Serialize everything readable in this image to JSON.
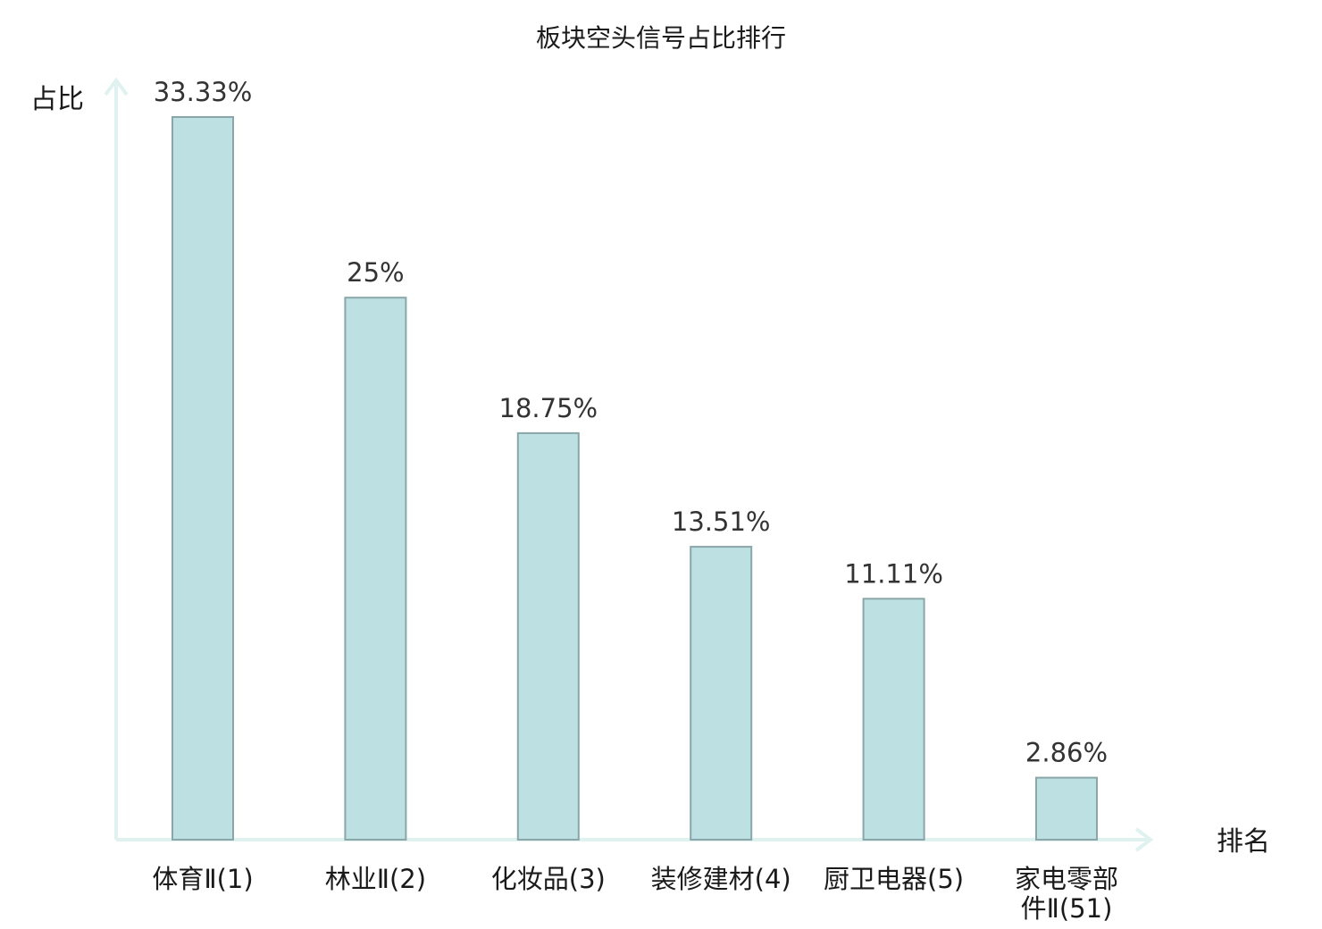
{
  "chart_data": {
    "type": "bar",
    "title": "板块空头信号占比排行",
    "ylabel": "占比",
    "xlabel": "排名",
    "ylim": [
      0,
      36
    ],
    "grid": false,
    "legend": "none",
    "categories": [
      [
        "体育Ⅱ(1)"
      ],
      [
        "林业Ⅱ(2)"
      ],
      [
        "化妆品(3)"
      ],
      [
        "装修建材(4)"
      ],
      [
        "厨卫电器(5)"
      ],
      [
        "家电零部",
        "件Ⅱ(51)"
      ]
    ],
    "values": [
      33.33,
      25,
      18.75,
      13.51,
      11.11,
      2.86
    ],
    "value_labels": [
      "33.33%",
      "25%",
      "18.75%",
      "13.51%",
      "11.11%",
      "2.86%"
    ],
    "highlight_index": 5,
    "colors": {
      "bar_fill": "#bde0e3",
      "bar_stroke": "#8aa6a9",
      "axis": "#e0f2f0",
      "text": "#1a1a1a",
      "value_text": "#333333",
      "highlight_text": "#e0201b"
    }
  }
}
